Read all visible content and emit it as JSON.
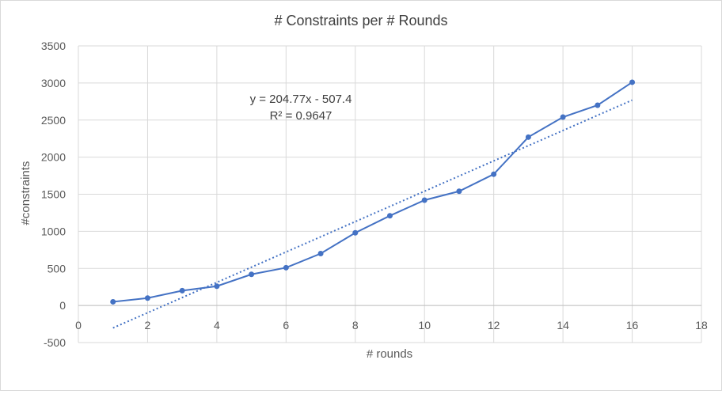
{
  "chart_data": {
    "type": "scatter",
    "title": "# Constraints per # Rounds",
    "xlabel": "# rounds",
    "ylabel": "#constraints",
    "xlim": [
      0,
      18
    ],
    "ylim": [
      -500,
      3500
    ],
    "x_ticks": [
      0,
      2,
      4,
      6,
      8,
      10,
      12,
      14,
      16,
      18
    ],
    "y_ticks": [
      -500,
      0,
      500,
      1000,
      1500,
      2000,
      2500,
      3000,
      3500
    ],
    "grid": true,
    "legend": "none",
    "series": [
      {
        "x": [
          1,
          2,
          3,
          4,
          5,
          6,
          7,
          8,
          9,
          10,
          11,
          12,
          13,
          14,
          15,
          16
        ],
        "y": [
          50,
          100,
          200,
          260,
          420,
          510,
          700,
          980,
          1210,
          1420,
          1540,
          1770,
          2270,
          2540,
          2700,
          3010
        ],
        "color": "#4472c4",
        "style": "line-with-markers"
      }
    ],
    "trendline": {
      "type": "linear",
      "slope": 204.77,
      "intercept": -507.4,
      "x_range": [
        1,
        16
      ],
      "color": "#4472c4",
      "style": "dotted",
      "equation_label": "y = 204.77x - 507.4",
      "r2_label": "R² = 0.9647"
    }
  }
}
